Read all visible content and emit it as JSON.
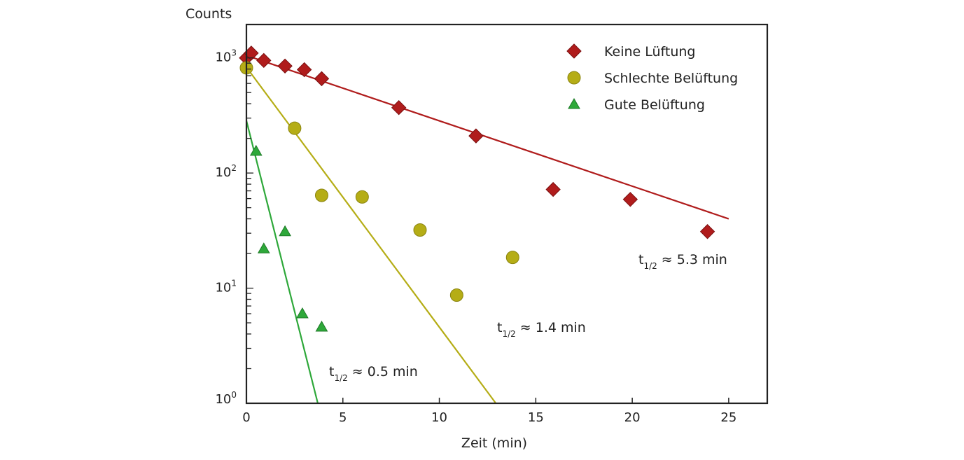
{
  "chart_data": {
    "type": "scatter",
    "title": "",
    "xlabel": "Zeit (min)",
    "ylabel": "Counts",
    "xlim": [
      0,
      27
    ],
    "ylim": [
      1,
      1950
    ],
    "yscale": "log",
    "grid": false,
    "legend_position": "top-right",
    "x_ticks": [
      0,
      5,
      10,
      15,
      20,
      25
    ],
    "x_tick_labels": [
      "0",
      "5",
      "10",
      "15",
      "20",
      "25"
    ],
    "y_ticks": [
      1,
      10,
      100,
      1000
    ],
    "y_tick_labels": [
      {
        "base": "10",
        "exp": "0"
      },
      {
        "base": "10",
        "exp": "1"
      },
      {
        "base": "10",
        "exp": "2"
      },
      {
        "base": "10",
        "exp": "3"
      }
    ],
    "series": [
      {
        "name": "Keine Lüftung",
        "marker": "diamond",
        "color": "#b01c1c",
        "x": [
          0,
          0.25,
          0.9,
          2.0,
          3.0,
          3.9,
          7.9,
          11.9,
          15.9,
          19.9,
          23.9
        ],
        "y": [
          1000,
          1100,
          950,
          850,
          790,
          660,
          370,
          210,
          72,
          59,
          31
        ],
        "fit": {
          "x": [
            0,
            25
          ],
          "y": [
            1050,
            40
          ],
          "color": "#b01c1c"
        },
        "annotation": {
          "t": "t",
          "sub": "1/2",
          "rest": " ≈ 5.3 min"
        }
      },
      {
        "name": "Schlechte Belüftung",
        "marker": "circle",
        "color": "#b5ad16",
        "x": [
          0,
          2.5,
          3.9,
          6.0,
          9.0,
          10.9,
          13.8
        ],
        "y": [
          820,
          245,
          64,
          62,
          32,
          8.7,
          18.5
        ],
        "fit": {
          "x": [
            0,
            12.93
          ],
          "y": [
            830,
            1
          ],
          "color": "#b5ad16"
        },
        "annotation": {
          "t": "t",
          "sub": "1/2",
          "rest": " ≈ 1.4 min"
        }
      },
      {
        "name": "Gute Belüftung",
        "marker": "triangle",
        "color": "#2ea83a",
        "x": [
          0.5,
          0.9,
          2.0,
          2.9,
          3.9
        ],
        "y": [
          155,
          22,
          31,
          6,
          4.6
        ],
        "fit": {
          "x": [
            0,
            3.7
          ],
          "y": [
            285,
            1
          ],
          "color": "#2ea83a"
        },
        "annotation": {
          "t": "t",
          "sub": "1/2",
          "rest": " ≈ 0.5 min"
        }
      }
    ]
  }
}
